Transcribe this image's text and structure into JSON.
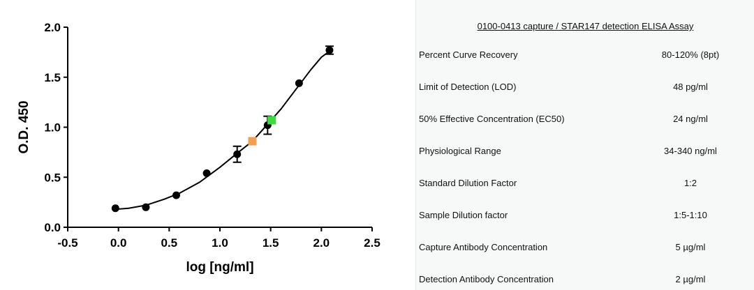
{
  "chart_data": {
    "type": "scatter",
    "xlabel": "log [ng/ml]",
    "ylabel": "O.D. 450",
    "xlim": [
      -0.5,
      2.5
    ],
    "ylim": [
      0.0,
      2.0
    ],
    "xticks": [
      "-0.5",
      "0.0",
      "0.5",
      "1.0",
      "1.5",
      "2.0",
      "2.5"
    ],
    "yticks": [
      "0.0",
      "0.5",
      "1.0",
      "1.5",
      "2.0"
    ],
    "grid": false,
    "series": [
      {
        "marker": "circle",
        "color": "#000000",
        "points": [
          {
            "x": -0.03,
            "y": 0.19
          },
          {
            "x": 0.27,
            "y": 0.2
          },
          {
            "x": 0.57,
            "y": 0.32
          },
          {
            "x": 0.87,
            "y": 0.54
          },
          {
            "x": 1.17,
            "y": 0.73,
            "err": 0.08
          },
          {
            "x": 1.47,
            "y": 1.02,
            "err": 0.09
          },
          {
            "x": 1.78,
            "y": 1.44
          },
          {
            "x": 2.08,
            "y": 1.77,
            "err": 0.04
          }
        ]
      },
      {
        "marker": "square",
        "color": "#f0a050",
        "points": [
          {
            "x": 1.32,
            "y": 0.86
          }
        ]
      },
      {
        "marker": "square",
        "color": "#3ddc3d",
        "points": [
          {
            "x": 1.51,
            "y": 1.07
          }
        ]
      }
    ],
    "fit_curve": [
      {
        "x": -0.03,
        "y": 0.18
      },
      {
        "x": 0.1,
        "y": 0.19
      },
      {
        "x": 0.27,
        "y": 0.22
      },
      {
        "x": 0.45,
        "y": 0.28
      },
      {
        "x": 0.6,
        "y": 0.34
      },
      {
        "x": 0.8,
        "y": 0.45
      },
      {
        "x": 1.0,
        "y": 0.6
      },
      {
        "x": 1.17,
        "y": 0.74
      },
      {
        "x": 1.32,
        "y": 0.86
      },
      {
        "x": 1.47,
        "y": 1.03
      },
      {
        "x": 1.6,
        "y": 1.18
      },
      {
        "x": 1.78,
        "y": 1.42
      },
      {
        "x": 1.9,
        "y": 1.58
      },
      {
        "x": 2.0,
        "y": 1.7
      },
      {
        "x": 2.08,
        "y": 1.76
      }
    ]
  },
  "table": {
    "title": "0100-0413 capture / STAR147 detection ELISA Assay",
    "rows": [
      {
        "label": "Percent Curve Recovery",
        "value": "80-120% (8pt)"
      },
      {
        "label": "Limit of Detection (LOD)",
        "value": "48 pg/ml"
      },
      {
        "label": "50% Effective Concentration (EC50)",
        "value": "24 ng/ml"
      },
      {
        "label": "Physiological Range",
        "value": "34-340 ng/ml"
      },
      {
        "label": "Standard Dilution Factor",
        "value": "1:2"
      },
      {
        "label": "Sample Dilution factor",
        "value": "1:5-1:10"
      },
      {
        "label": "Capture Antibody Concentration",
        "value": "5 µg/ml"
      },
      {
        "label": "Detection Antibody Concentration",
        "value": "2 µg/ml"
      }
    ]
  }
}
